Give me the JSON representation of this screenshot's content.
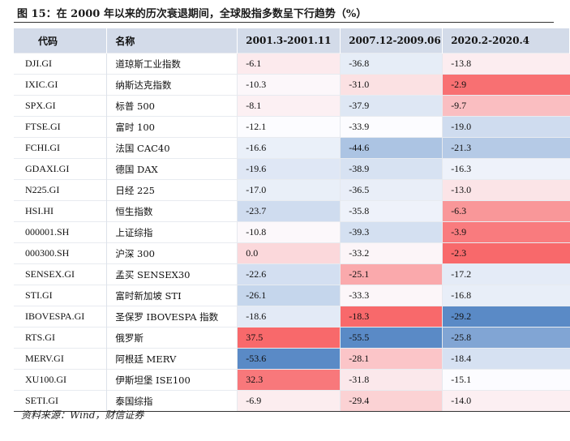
{
  "title": "图 15：在 2000 年以来的历次衰退期间，全球股指多数呈下行趋势（%）",
  "header": {
    "code": "代码",
    "name": "名称",
    "periods": [
      "2001.3-2001.11",
      "2007.12-2009.06",
      "2020.2-2020.4"
    ]
  },
  "colors": {
    "header_bg": "#d3dbe9",
    "positive": "#f8696b",
    "negative": "#5a8ac6",
    "neutral": "#fcfcff"
  },
  "rows": [
    {
      "code": "DJI.GI",
      "name": "道琼斯工业指数",
      "values": [
        "-6.1",
        "-36.8",
        "-13.8"
      ]
    },
    {
      "code": "IXIC.GI",
      "name": "纳斯达克指数",
      "values": [
        "-10.3",
        "-31.0",
        "-2.9"
      ]
    },
    {
      "code": "SPX.GI",
      "name": "标普 500",
      "values": [
        "-8.1",
        "-37.9",
        "-9.7"
      ]
    },
    {
      "code": "FTSE.GI",
      "name": "富时 100",
      "values": [
        "-12.1",
        "-33.9",
        "-19.0"
      ]
    },
    {
      "code": "FCHI.GI",
      "name": "法国 CAC40",
      "values": [
        "-16.6",
        "-44.6",
        "-21.3"
      ]
    },
    {
      "code": "GDAXI.GI",
      "name": "德国 DAX",
      "values": [
        "-19.6",
        "-38.9",
        "-16.3"
      ]
    },
    {
      "code": "N225.GI",
      "name": "日经 225",
      "values": [
        "-17.0",
        "-36.5",
        "-13.0"
      ]
    },
    {
      "code": "HSI.HI",
      "name": "恒生指数",
      "values": [
        "-23.7",
        "-35.8",
        "-6.3"
      ]
    },
    {
      "code": "000001.SH",
      "name": "上证综指",
      "values": [
        "-10.8",
        "-39.3",
        "-3.9"
      ]
    },
    {
      "code": "000300.SH",
      "name": "沪深 300",
      "values": [
        "0.0",
        "-33.2",
        "-2.3"
      ]
    },
    {
      "code": "SENSEX.GI",
      "name": "孟买 SENSEX30",
      "values": [
        "-22.6",
        "-25.1",
        "-17.2"
      ]
    },
    {
      "code": "STI.GI",
      "name": "富时新加坡 STI",
      "values": [
        "-26.1",
        "-33.3",
        "-16.8"
      ]
    },
    {
      "code": "IBOVESPA.GI",
      "name": "圣保罗 IBOVESPA 指数",
      "values": [
        "-18.6",
        "-18.3",
        "-29.2"
      ]
    },
    {
      "code": "RTS.GI",
      "name": "俄罗斯",
      "values": [
        "37.5",
        "-55.5",
        "-25.8"
      ]
    },
    {
      "code": "MERV.GI",
      "name": "阿根廷 MERV",
      "values": [
        "-53.6",
        "-28.1",
        "-18.4"
      ]
    },
    {
      "code": "XU100.GI",
      "name": "伊斯坦堡 ISE100",
      "values": [
        "32.3",
        "-31.8",
        "-15.1"
      ]
    },
    {
      "code": "SETI.GI",
      "name": "泰国综指",
      "values": [
        "-6.9",
        "-29.4",
        "-14.0"
      ]
    }
  ],
  "source": "资料来源：Wind，财信证券"
}
